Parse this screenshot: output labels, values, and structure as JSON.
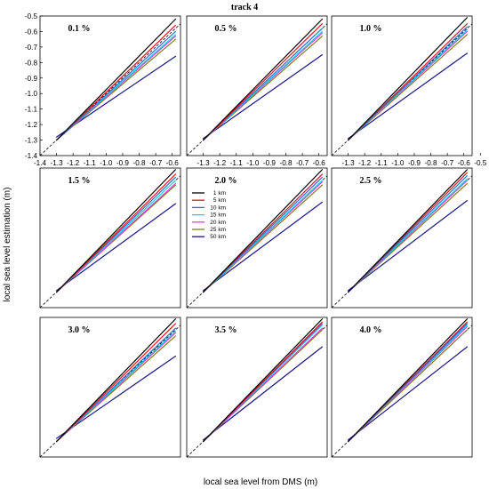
{
  "figure": {
    "title": "track 4",
    "xlabel": "local sea level from DMS (m)",
    "ylabel": "local sea level estimation (m)"
  },
  "colors": {
    "1 km": "#000000",
    "5 km": "#e8141c",
    "10 km": "#2f6fd6",
    "15 km": "#18d0e6",
    "20 km": "#e23ae6",
    "25 km": "#7f7f1a",
    "50 km": "#16168a",
    "reference": "#000000"
  },
  "legend": [
    "1 km",
    "5 km",
    "10 km",
    "15 km",
    "20 km",
    "25 km",
    "50 km"
  ],
  "chart_data": [
    {
      "type": "line",
      "title": "0.1 %",
      "x": [
        -1.3,
        -0.58
      ],
      "xlim": [
        -1.4,
        -0.55
      ],
      "ylim": [
        -1.4,
        -0.5
      ],
      "yticks": [
        -1.4,
        -1.3,
        -1.2,
        -1.1,
        -1.0,
        -0.9,
        -0.8,
        -0.7,
        -0.6,
        -0.5
      ],
      "xticks": [
        -1.4,
        -1.3,
        -1.2,
        -1.1,
        -1.0,
        -0.9,
        -0.8,
        -0.7,
        -0.6
      ],
      "series": [
        {
          "name": "1 km",
          "values": [
            -1.3,
            -0.52
          ]
        },
        {
          "name": "5 km",
          "values": [
            -1.3,
            -0.56
          ]
        },
        {
          "name": "10 km",
          "values": [
            -1.3,
            -0.6
          ]
        },
        {
          "name": "15 km",
          "values": [
            -1.3,
            -0.62
          ]
        },
        {
          "name": "20 km",
          "values": [
            -1.3,
            -0.63
          ]
        },
        {
          "name": "25 km",
          "values": [
            -1.3,
            -0.65
          ]
        },
        {
          "name": "50 km",
          "values": [
            -1.28,
            -0.76
          ]
        }
      ]
    },
    {
      "type": "line",
      "title": "0.5 %",
      "x": [
        -1.3,
        -0.58
      ],
      "xlim": [
        -1.4,
        -0.55
      ],
      "ylim": [
        -1.4,
        -0.5
      ],
      "xticks": [
        -1.3,
        -1.2,
        -1.1,
        -1.0,
        -0.9,
        -0.8,
        -0.7,
        -0.6
      ],
      "series": [
        {
          "name": "1 km",
          "values": [
            -1.3,
            -0.52
          ]
        },
        {
          "name": "5 km",
          "values": [
            -1.3,
            -0.55
          ]
        },
        {
          "name": "10 km",
          "values": [
            -1.3,
            -0.58
          ]
        },
        {
          "name": "15 km",
          "values": [
            -1.3,
            -0.6
          ]
        },
        {
          "name": "20 km",
          "values": [
            -1.3,
            -0.61
          ]
        },
        {
          "name": "25 km",
          "values": [
            -1.3,
            -0.63
          ]
        },
        {
          "name": "50 km",
          "values": [
            -1.29,
            -0.75
          ]
        }
      ]
    },
    {
      "type": "line",
      "title": "1.0 %",
      "x": [
        -1.3,
        -0.58
      ],
      "xlim": [
        -1.4,
        -0.55
      ],
      "ylim": [
        -1.4,
        -0.5
      ],
      "xticks": [
        -1.3,
        -1.2,
        -1.1,
        -1.0,
        -0.9,
        -0.8,
        -0.7,
        -0.6,
        -0.5
      ],
      "series": [
        {
          "name": "1 km",
          "values": [
            -1.3,
            -0.51
          ]
        },
        {
          "name": "5 km",
          "values": [
            -1.3,
            -0.55
          ]
        },
        {
          "name": "10 km",
          "values": [
            -1.3,
            -0.57
          ]
        },
        {
          "name": "15 km",
          "values": [
            -1.3,
            -0.59
          ]
        },
        {
          "name": "20 km",
          "values": [
            -1.3,
            -0.6
          ]
        },
        {
          "name": "25 km",
          "values": [
            -1.3,
            -0.62
          ]
        },
        {
          "name": "50 km",
          "values": [
            -1.29,
            -0.74
          ]
        }
      ]
    },
    {
      "type": "line",
      "title": "1.5 %",
      "x": [
        -1.3,
        -0.58
      ],
      "xlim": [
        -1.4,
        -0.55
      ],
      "ylim": [
        -1.4,
        -0.5
      ],
      "series": [
        {
          "name": "1 km",
          "values": [
            -1.3,
            -0.51
          ]
        },
        {
          "name": "5 km",
          "values": [
            -1.3,
            -0.54
          ]
        },
        {
          "name": "10 km",
          "values": [
            -1.3,
            -0.56
          ]
        },
        {
          "name": "15 km",
          "values": [
            -1.3,
            -0.58
          ]
        },
        {
          "name": "20 km",
          "values": [
            -1.3,
            -0.6
          ]
        },
        {
          "name": "25 km",
          "values": [
            -1.3,
            -0.61
          ]
        },
        {
          "name": "50 km",
          "values": [
            -1.29,
            -0.73
          ]
        }
      ]
    },
    {
      "type": "line",
      "title": "2.0 %",
      "x": [
        -1.3,
        -0.58
      ],
      "xlim": [
        -1.4,
        -0.55
      ],
      "ylim": [
        -1.4,
        -0.5
      ],
      "series": [
        {
          "name": "1 km",
          "values": [
            -1.3,
            -0.51
          ]
        },
        {
          "name": "5 km",
          "values": [
            -1.3,
            -0.54
          ]
        },
        {
          "name": "10 km",
          "values": [
            -1.3,
            -0.56
          ]
        },
        {
          "name": "15 km",
          "values": [
            -1.3,
            -0.58
          ]
        },
        {
          "name": "20 km",
          "values": [
            -1.3,
            -0.59
          ]
        },
        {
          "name": "25 km",
          "values": [
            -1.3,
            -0.61
          ]
        },
        {
          "name": "50 km",
          "values": [
            -1.29,
            -0.72
          ]
        }
      ]
    },
    {
      "type": "line",
      "title": "2.5 %",
      "x": [
        -1.3,
        -0.58
      ],
      "xlim": [
        -1.4,
        -0.55
      ],
      "ylim": [
        -1.4,
        -0.5
      ],
      "series": [
        {
          "name": "1 km",
          "values": [
            -1.3,
            -0.51
          ]
        },
        {
          "name": "5 km",
          "values": [
            -1.3,
            -0.53
          ]
        },
        {
          "name": "10 km",
          "values": [
            -1.3,
            -0.55
          ]
        },
        {
          "name": "15 km",
          "values": [
            -1.3,
            -0.57
          ]
        },
        {
          "name": "20 km",
          "values": [
            -1.3,
            -0.58
          ]
        },
        {
          "name": "25 km",
          "values": [
            -1.3,
            -0.6
          ]
        },
        {
          "name": "50 km",
          "values": [
            -1.29,
            -0.71
          ]
        }
      ]
    },
    {
      "type": "line",
      "title": "3.0 %",
      "x": [
        -1.3,
        -0.58
      ],
      "xlim": [
        -1.4,
        -0.55
      ],
      "ylim": [
        -1.4,
        -0.5
      ],
      "series": [
        {
          "name": "1 km",
          "values": [
            -1.3,
            -0.51
          ]
        },
        {
          "name": "5 km",
          "values": [
            -1.3,
            -0.54
          ]
        },
        {
          "name": "10 km",
          "values": [
            -1.3,
            -0.57
          ]
        },
        {
          "name": "15 km",
          "values": [
            -1.3,
            -0.59
          ]
        },
        {
          "name": "20 km",
          "values": [
            -1.3,
            -0.6
          ]
        },
        {
          "name": "25 km",
          "values": [
            -1.3,
            -0.62
          ]
        },
        {
          "name": "50 km",
          "values": [
            -1.28,
            -0.75
          ]
        }
      ]
    },
    {
      "type": "line",
      "title": "3.5 %",
      "x": [
        -1.3,
        -0.58
      ],
      "xlim": [
        -1.4,
        -0.55
      ],
      "ylim": [
        -1.4,
        -0.5
      ],
      "series": [
        {
          "name": "1 km",
          "values": [
            -1.3,
            -0.51
          ]
        },
        {
          "name": "5 km",
          "values": [
            -1.3,
            -0.53
          ]
        },
        {
          "name": "10 km",
          "values": [
            -1.3,
            -0.54
          ]
        },
        {
          "name": "15 km",
          "values": [
            -1.3,
            -0.55
          ]
        },
        {
          "name": "20 km",
          "values": [
            -1.3,
            -0.57
          ]
        },
        {
          "name": "25 km",
          "values": [
            -1.3,
            -0.58
          ]
        },
        {
          "name": "50 km",
          "values": [
            -1.29,
            -0.69
          ]
        }
      ]
    },
    {
      "type": "line",
      "title": "4.0 %",
      "x": [
        -1.3,
        -0.58
      ],
      "xlim": [
        -1.4,
        -0.55
      ],
      "ylim": [
        -1.4,
        -0.5
      ],
      "series": [
        {
          "name": "1 km",
          "values": [
            -1.3,
            -0.51
          ]
        },
        {
          "name": "5 km",
          "values": [
            -1.3,
            -0.53
          ]
        },
        {
          "name": "10 km",
          "values": [
            -1.3,
            -0.54
          ]
        },
        {
          "name": "15 km",
          "values": [
            -1.3,
            -0.55
          ]
        },
        {
          "name": "20 km",
          "values": [
            -1.3,
            -0.56
          ]
        },
        {
          "name": "25 km",
          "values": [
            -1.3,
            -0.58
          ]
        },
        {
          "name": "50 km",
          "values": [
            -1.29,
            -0.69
          ]
        }
      ]
    }
  ]
}
